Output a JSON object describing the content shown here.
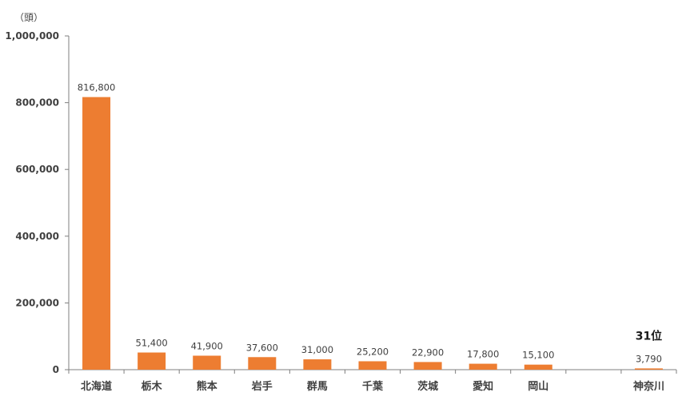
{
  "chart_data": {
    "type": "bar",
    "unit_label": "（頭）",
    "categories": [
      "北海道",
      "栃木",
      "熊本",
      "岩手",
      "群馬",
      "千葉",
      "茨城",
      "愛知",
      "岡山",
      "",
      "神奈川"
    ],
    "values": [
      816800,
      51400,
      41900,
      37600,
      31000,
      25200,
      22900,
      17800,
      15100,
      null,
      3790
    ],
    "data_labels": [
      "816,800",
      "51,400",
      "41,900",
      "37,600",
      "31,000",
      "25,200",
      "22,900",
      "17,800",
      "15,100",
      "",
      "3,790"
    ],
    "yticks": [
      0,
      200000,
      400000,
      600000,
      800000,
      1000000
    ],
    "ytick_labels": [
      "0",
      "200,000",
      "400,000",
      "600,000",
      "800,000",
      "1,000,000"
    ],
    "ylim": [
      0,
      1000000
    ],
    "annotation": {
      "text": "31位",
      "category_index": 10
    },
    "bar_color": "#ED7D31",
    "axis_color": "#7f7f7f",
    "grid": false,
    "legend": "none",
    "title": "",
    "xlabel": "",
    "ylabel": ""
  }
}
